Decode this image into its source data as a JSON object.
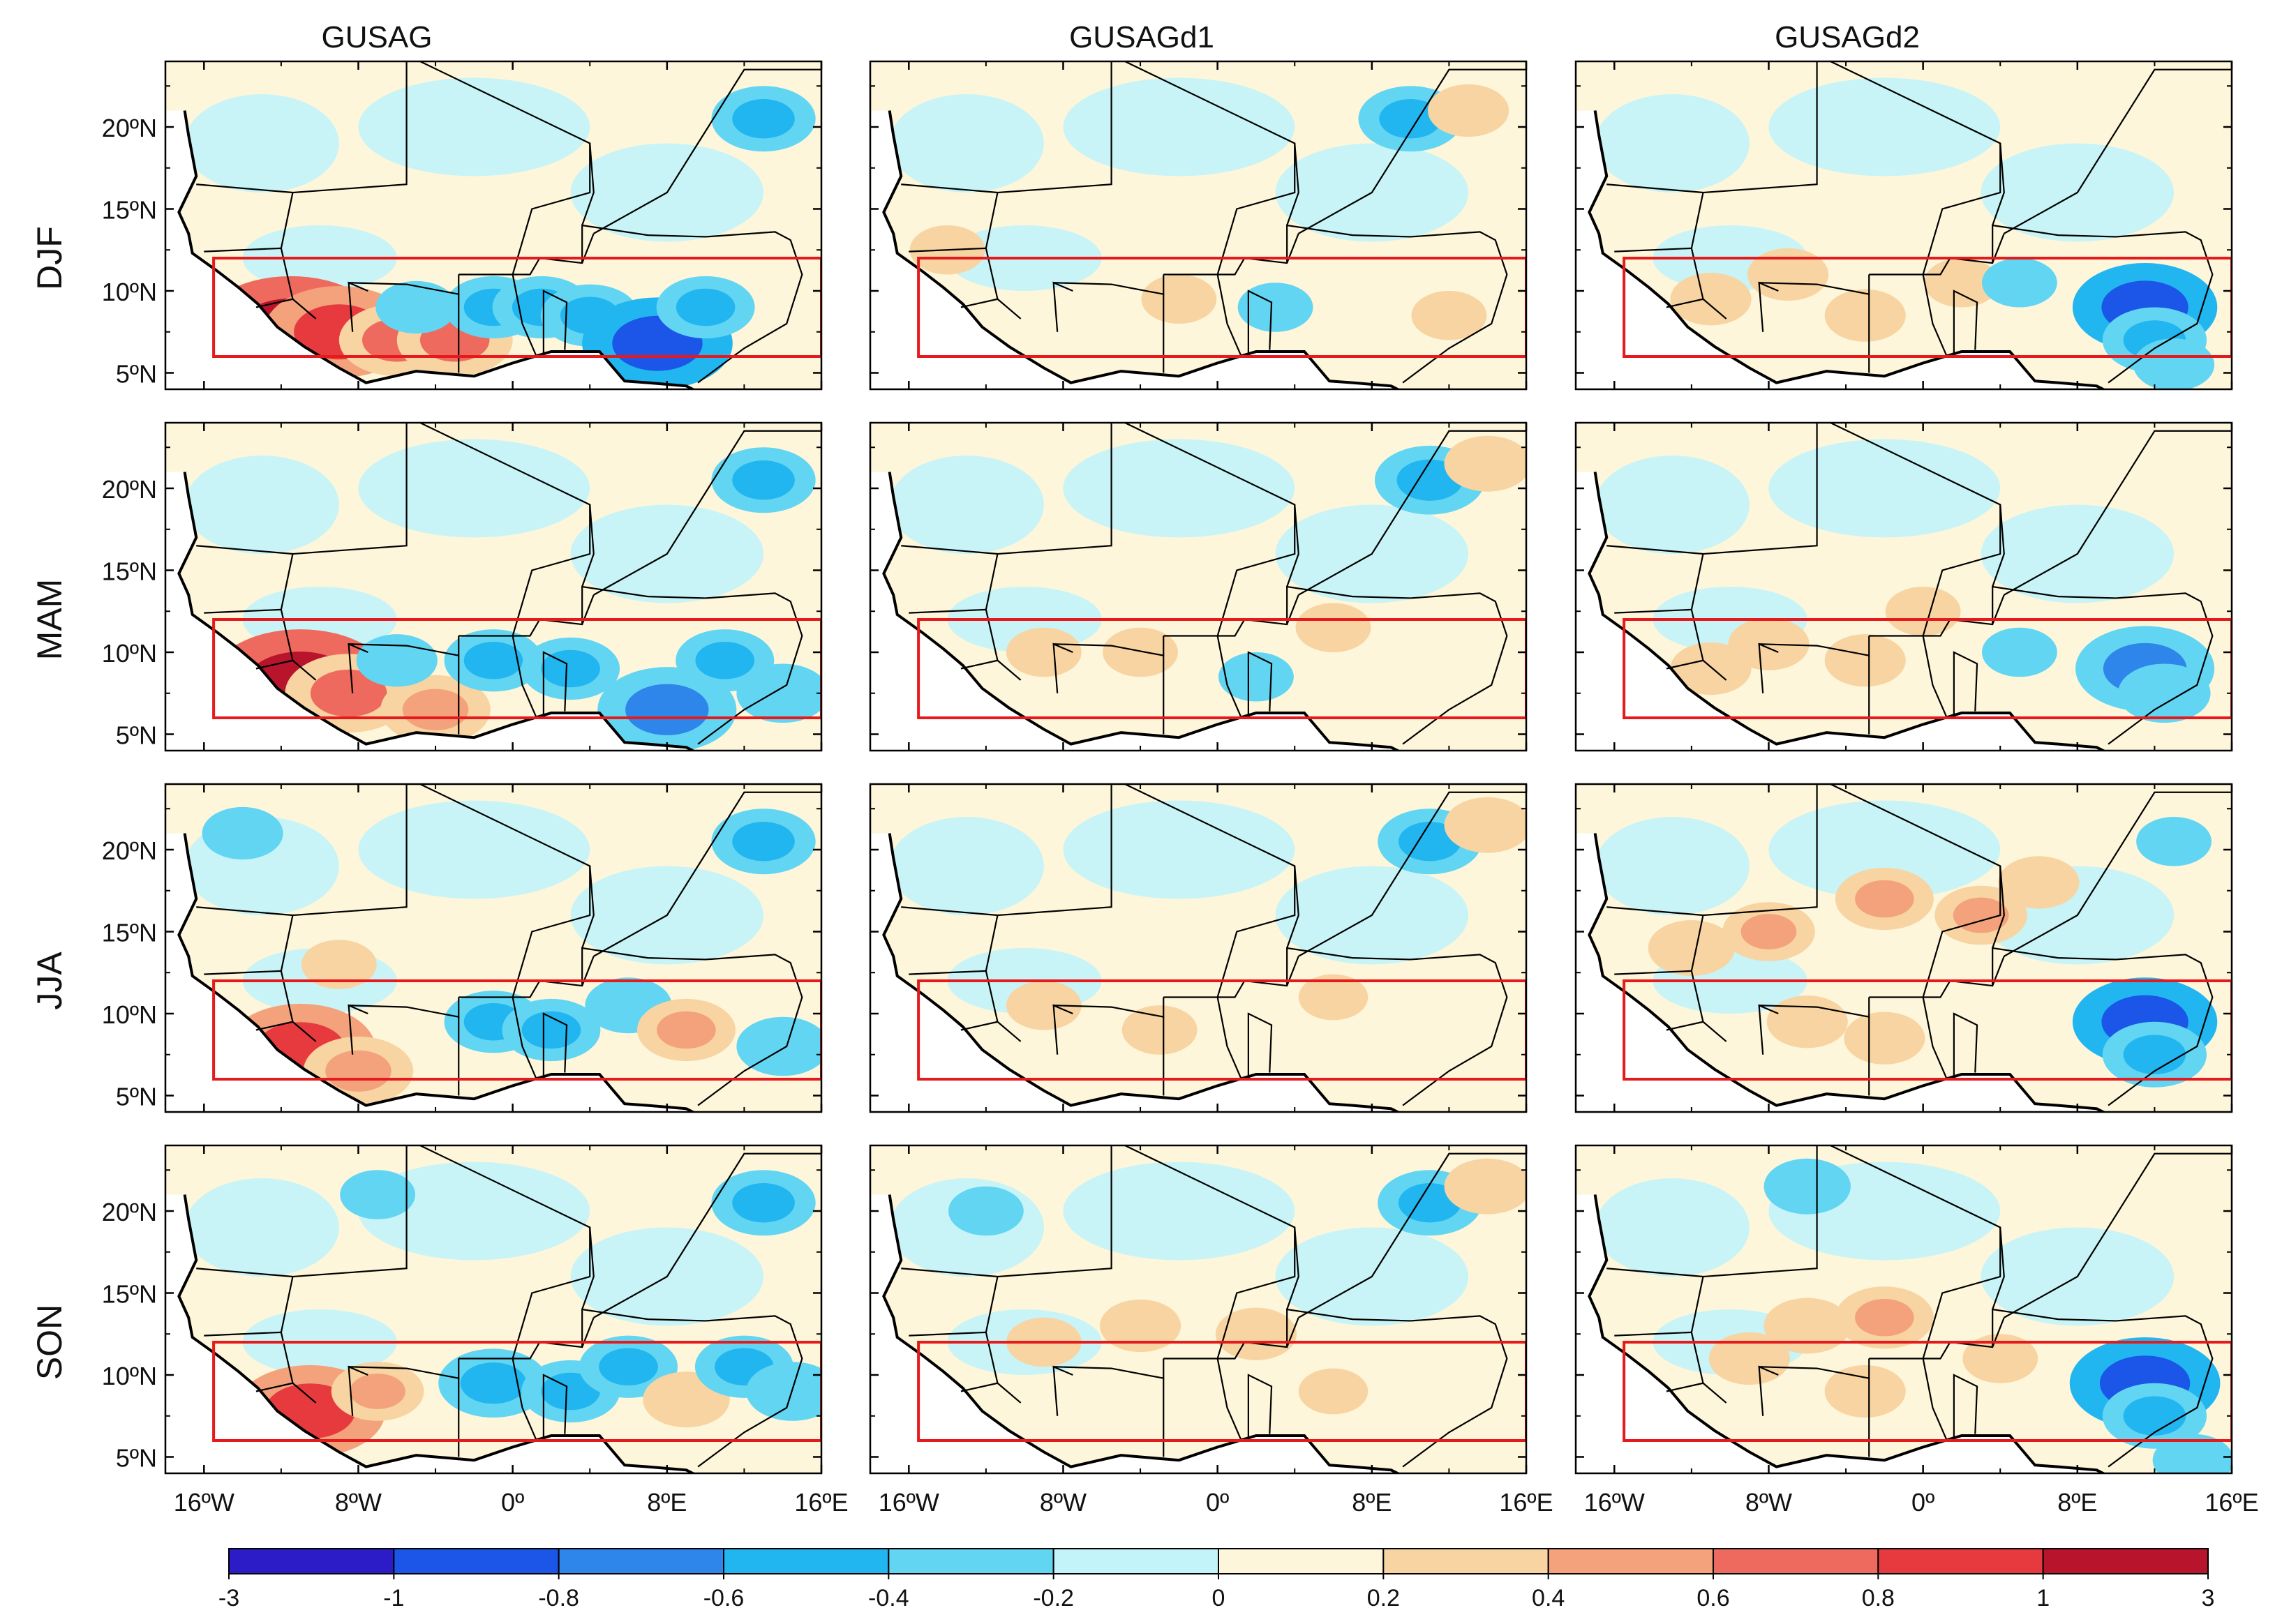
{
  "chart_data": {
    "type": "heatmap",
    "description_rows": [
      "DJF",
      "MAM",
      "JJA",
      "SON"
    ],
    "columns": [
      "GUSAG",
      "GUSAGd1",
      "GUSAGd2"
    ],
    "lat_ticks": [
      "20ºN",
      "15ºN",
      "10ºN",
      "5ºN"
    ],
    "lat_values": [
      20,
      15,
      10,
      5
    ],
    "lon_ticks": [
      "16ºW",
      "8ºW",
      "0º",
      "8ºE",
      "16ºE"
    ],
    "lon_values": [
      -16,
      -8,
      0,
      8,
      16
    ],
    "xlim": [
      -18,
      16
    ],
    "ylim": [
      4,
      24
    ],
    "box": {
      "lon_min": -15.5,
      "lon_max": 16,
      "lat_min": 6,
      "lat_max": 12,
      "color": "#e41a1c"
    },
    "colorbar": {
      "labels": [
        "-3",
        "-1",
        "-0.8",
        "-0.6",
        "-0.4",
        "-0.2",
        "0",
        "0.2",
        "0.4",
        "0.6",
        "0.8",
        "1",
        "3"
      ],
      "colors": [
        "#2b1cc8",
        "#1b56e8",
        "#2f86ea",
        "#21b6f0",
        "#62d5f3",
        "#c2f4fa",
        "#fdf6da",
        "#f8d4a2",
        "#f3a27c",
        "#ef6a5e",
        "#e73a3e",
        "#b8142c"
      ]
    },
    "panels": [
      [
        {
          "blobs": [
            [
              -11.5,
              7.5,
              1.2
            ],
            [
              -9,
              7.5,
              0.9
            ],
            [
              -6,
              7.0,
              0.6
            ],
            [
              -3,
              7.0,
              0.6
            ],
            [
              -1,
              9.0,
              -0.45
            ],
            [
              1.5,
              9.0,
              -0.45
            ],
            [
              4,
              8.5,
              -0.45
            ],
            [
              7.5,
              6.8,
              -0.9
            ],
            [
              10,
              9.0,
              -0.45
            ],
            [
              13,
              20.5,
              -0.5
            ],
            [
              -5,
              9,
              -0.3
            ]
          ]
        },
        {
          "blobs": [
            [
              10,
              20.5,
              -0.5
            ],
            [
              13,
              21,
              0.3
            ],
            [
              -2,
              9.5,
              0.25
            ],
            [
              3,
              9,
              -0.25
            ],
            [
              12,
              8.5,
              0.25
            ],
            [
              -14,
              12.5,
              0.25
            ]
          ]
        },
        {
          "blobs": [
            [
              11.5,
              9.0,
              -0.85
            ],
            [
              12,
              7.0,
              -0.5
            ],
            [
              -7,
              11.0,
              0.3
            ],
            [
              -3,
              8.5,
              0.3
            ],
            [
              2,
              10.5,
              0.25
            ],
            [
              5,
              10.5,
              -0.25
            ],
            [
              13,
              5.5,
              -0.3
            ],
            [
              -11,
              9.5,
              0.3
            ]
          ]
        }
      ],
      [
        {
          "blobs": [
            [
              -11,
              8.0,
              1.2
            ],
            [
              -8.5,
              7.5,
              0.7
            ],
            [
              -4,
              6.5,
              0.55
            ],
            [
              -1,
              9.5,
              -0.45
            ],
            [
              3,
              9,
              -0.45
            ],
            [
              8,
              6.5,
              -0.8
            ],
            [
              11,
              9.5,
              -0.45
            ],
            [
              14,
              7.5,
              -0.4
            ],
            [
              13,
              20.5,
              -0.5
            ],
            [
              -6,
              9.5,
              -0.3
            ]
          ]
        },
        {
          "blobs": [
            [
              11,
              20.5,
              -0.55
            ],
            [
              14,
              21.5,
              0.35
            ],
            [
              -4,
              10,
              0.25
            ],
            [
              -9,
              10,
              0.25
            ],
            [
              6,
              11.5,
              0.25
            ],
            [
              2,
              8.5,
              -0.25
            ]
          ]
        },
        {
          "blobs": [
            [
              11.5,
              9.0,
              -0.8
            ],
            [
              12.5,
              7.5,
              -0.4
            ],
            [
              -8,
              10.5,
              0.3
            ],
            [
              -3,
              9.5,
              0.3
            ],
            [
              0,
              12.5,
              0.25
            ],
            [
              -11,
              9,
              0.3
            ],
            [
              5,
              10,
              -0.25
            ]
          ]
        }
      ],
      [
        {
          "blobs": [
            [
              -11,
              7.8,
              0.9
            ],
            [
              -8,
              6.5,
              0.55
            ],
            [
              -1,
              9.5,
              -0.45
            ],
            [
              2,
              9,
              -0.45
            ],
            [
              6,
              10.5,
              -0.35
            ],
            [
              9,
              9.0,
              0.45
            ],
            [
              14,
              8,
              -0.4
            ],
            [
              13,
              20.5,
              -0.5
            ],
            [
              -14,
              21,
              -0.3
            ],
            [
              -9,
              13,
              0.25
            ]
          ]
        },
        {
          "blobs": [
            [
              11,
              20.5,
              -0.5
            ],
            [
              14,
              21.5,
              0.35
            ],
            [
              -9,
              10.5,
              0.25
            ],
            [
              -3,
              9,
              0.25
            ],
            [
              6,
              11,
              0.2
            ]
          ]
        },
        {
          "blobs": [
            [
              11.5,
              9.5,
              -0.85
            ],
            [
              12,
              7.5,
              -0.5
            ],
            [
              -2,
              17,
              0.45
            ],
            [
              -8,
              15,
              0.4
            ],
            [
              3,
              16,
              0.4
            ],
            [
              -12,
              14,
              0.35
            ],
            [
              6,
              18,
              0.3
            ],
            [
              -6,
              9.5,
              0.3
            ],
            [
              -2,
              8.5,
              0.3
            ],
            [
              13,
              20.5,
              -0.25
            ]
          ]
        }
      ],
      [
        {
          "blobs": [
            [
              -10.5,
              7.8,
              0.9
            ],
            [
              -7,
              9.0,
              0.4
            ],
            [
              -1,
              9.5,
              -0.55
            ],
            [
              3,
              9,
              -0.45
            ],
            [
              6,
              10.5,
              -0.45
            ],
            [
              9,
              8.5,
              0.35
            ],
            [
              12,
              10.5,
              -0.45
            ],
            [
              14.5,
              9,
              -0.4
            ],
            [
              13,
              20.5,
              -0.5
            ],
            [
              -7,
              21,
              -0.25
            ]
          ]
        },
        {
          "blobs": [
            [
              11,
              20.5,
              -0.5
            ],
            [
              14,
              21.5,
              0.35
            ],
            [
              -4,
              13,
              0.3
            ],
            [
              2,
              12.5,
              0.3
            ],
            [
              -9,
              12,
              0.25
            ],
            [
              6,
              9,
              0.2
            ],
            [
              -12,
              20,
              -0.25
            ]
          ]
        },
        {
          "blobs": [
            [
              11.5,
              9.5,
              -0.9
            ],
            [
              12,
              7.5,
              -0.5
            ],
            [
              -2,
              13.5,
              0.45
            ],
            [
              -6,
              13,
              0.35
            ],
            [
              -6,
              21.5,
              -0.35
            ],
            [
              -9,
              11,
              0.3
            ],
            [
              -3,
              9,
              0.3
            ],
            [
              4,
              11,
              0.25
            ],
            [
              14,
              4.8,
              -0.3
            ]
          ]
        }
      ]
    ]
  }
}
